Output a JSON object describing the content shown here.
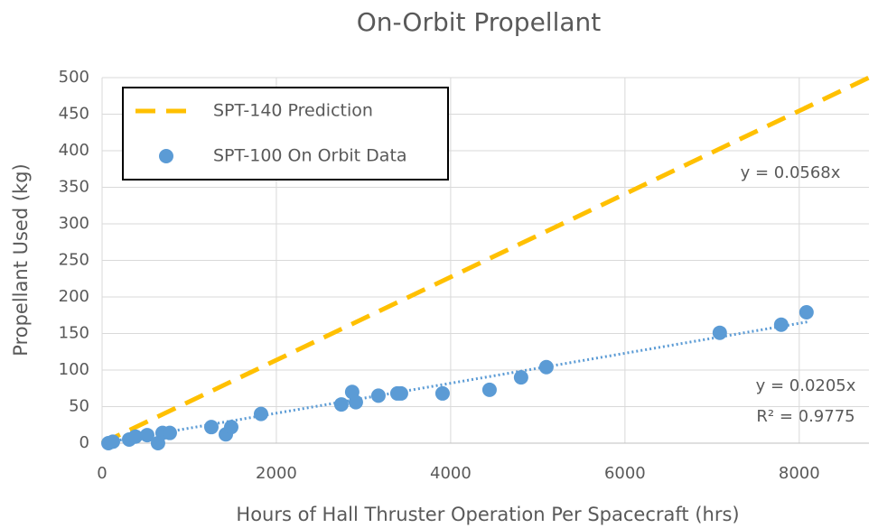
{
  "chart_data": {
    "type": "scatter",
    "title": "On-Orbit Propellant",
    "x_label": "Hours of Hall Thruster Operation Per Spacecraft (hrs)",
    "y_label": "Propellant Used (kg)",
    "xlim": [
      0,
      8800
    ],
    "ylim": [
      0,
      500
    ],
    "xticks": [
      0,
      2000,
      4000,
      6000,
      8000
    ],
    "yticks": [
      0,
      50,
      100,
      150,
      200,
      250,
      300,
      350,
      400,
      450,
      500
    ],
    "grid": true,
    "legend": "top-left",
    "series": [
      {
        "name": "SPT-140 Prediction",
        "type": "line",
        "style": "dashed",
        "color": "#ffc000",
        "x": [
          0,
          8800
        ],
        "values": [
          0,
          500
        ]
      },
      {
        "name": "SPT-100 On Orbit Data",
        "type": "scatter",
        "color": "#5b9bd5",
        "x": [
          73,
          124,
          311,
          383,
          518,
          694,
          777,
          642,
          1254,
          1420,
          1482,
          1824,
          2746,
          2870,
          2912,
          3171,
          3389,
          3430,
          3907,
          4446,
          4808,
          5098,
          7088,
          7793,
          8083
        ],
        "values": [
          0,
          2,
          5,
          9,
          11,
          14,
          14,
          0,
          22,
          12,
          22,
          40,
          53,
          70,
          56,
          65,
          68,
          68,
          68,
          73,
          90,
          104,
          151,
          162,
          179
        ],
        "trendline": {
          "color": "#5b9bd5",
          "x": [
            0,
            8100
          ],
          "values": [
            0,
            166
          ]
        }
      }
    ],
    "annotations": [
      "y = 0.0568x",
      "y = 0.0205x",
      "R² = 0.9775"
    ]
  }
}
